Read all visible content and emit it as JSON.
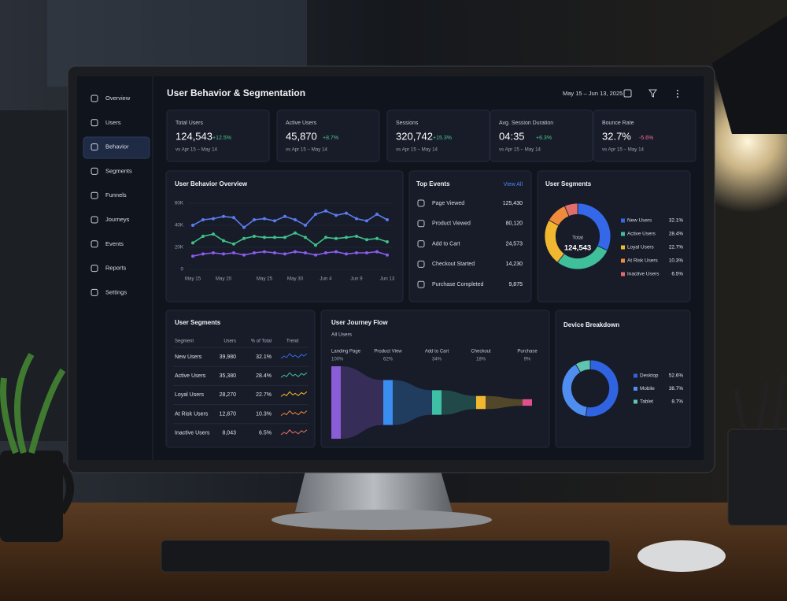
{
  "sidebar": {
    "items": [
      "Overview",
      "Users",
      "Behavior",
      "Segments",
      "Funnels",
      "Journeys",
      "Events",
      "Reports",
      "Settings"
    ]
  },
  "header": {
    "title": "User Behavior & Segmentation",
    "date_range": "May 15 – Jun 13, 2025"
  },
  "kpis": [
    {
      "label": "Total Users",
      "value": "124,543",
      "change": "+12.5%",
      "compare": "vs Apr 15 – May 14"
    },
    {
      "label": "Active Users",
      "value": "45,870",
      "change": "+8.7%",
      "compare": "vs Apr 15 – May 14"
    },
    {
      "label": "Sessions",
      "value": "320,742",
      "change": "+15.3%",
      "compare": "vs Apr 15 – May 14"
    },
    {
      "label": "Avg. Session Duration",
      "value": "04:35",
      "change": "+6.3%",
      "compare": "vs Apr 15 – May 14"
    },
    {
      "label": "Bounce Rate",
      "value": "32.7%",
      "change": "-5.6%",
      "compare": "vs Apr 15 – May 14"
    }
  ],
  "top_events": {
    "title": "Top Events",
    "link": "View All",
    "rows": [
      [
        "Page Viewed",
        "125,430"
      ],
      [
        "Product Viewed",
        "80,120"
      ],
      [
        "Add to Cart",
        "24,573"
      ],
      [
        "Checkout Started",
        "14,230"
      ],
      [
        "Purchase Completed",
        "9,875"
      ]
    ]
  },
  "segments_table": {
    "title": "User Segments",
    "columns": [
      "Segment",
      "Users",
      "% of Total",
      "Trend"
    ],
    "rows": [
      [
        "New Users",
        "39,980",
        "32.1%"
      ],
      [
        "Active Users",
        "35,380",
        "28.4%"
      ],
      [
        "Loyal Users",
        "28,270",
        "22.7%"
      ],
      [
        "At Risk Users",
        "12,870",
        "10.3%"
      ],
      [
        "Inactive Users",
        "8,043",
        "6.5%"
      ]
    ]
  },
  "chart_data": [
    {
      "type": "line",
      "title": "User Behavior Overview",
      "categories": [
        "May 15",
        null,
        null,
        "May 20",
        null,
        null,
        null,
        "May 25",
        null,
        null,
        "May 30",
        null,
        null,
        "Jun 4",
        null,
        null,
        "Jun 9",
        null,
        null,
        "Jun 13"
      ],
      "series": [
        {
          "color": "#5b7cf0",
          "values": [
            40000,
            45000,
            46000,
            48000,
            47000,
            38000,
            45000,
            46000,
            44000,
            48000,
            45000,
            40000,
            50000,
            53000,
            49000,
            51000,
            46000,
            44000,
            50000,
            45000
          ]
        },
        {
          "color": "#3ec28a",
          "values": [
            24000,
            30000,
            32000,
            26000,
            23000,
            28000,
            30000,
            29000,
            29000,
            29000,
            33000,
            29000,
            22000,
            29000,
            28000,
            29000,
            30000,
            27000,
            28000,
            25000
          ]
        },
        {
          "color": "#8a5cf0",
          "values": [
            12000,
            14000,
            15000,
            14000,
            15000,
            13000,
            15000,
            16000,
            15000,
            14000,
            16000,
            15000,
            13000,
            15000,
            16000,
            14000,
            15000,
            15000,
            16000,
            13000
          ]
        }
      ],
      "ylim": [
        0,
        60000
      ],
      "yticks": [
        0,
        {
          "value": 20000,
          "label": "20K"
        },
        {
          "value": 40000,
          "label": "40K"
        },
        {
          "value": 60000,
          "label": "60K"
        }
      ],
      "grid": true
    },
    {
      "type": "pie",
      "title": "User Segments",
      "donut": true,
      "center_label": "Total",
      "center_value": "124,543",
      "categories": [
        "New Users",
        "Active Users",
        "Loyal Users",
        "At Risk Users",
        "Inactive Users"
      ],
      "values": [
        32.1,
        28.4,
        22.7,
        10.3,
        6.5
      ],
      "value_labels": [
        "32.1%",
        "28.4%",
        "22.7%",
        "10.3%",
        "6.5%"
      ],
      "colors": [
        "#3568e8",
        "#3fbf9a",
        "#f2b731",
        "#f08a3c",
        "#e26d6d"
      ]
    },
    {
      "type": "funnel",
      "title": "User Journey Flow",
      "subtitle": "All Users",
      "categories": [
        "Landing Page",
        "Product View",
        "Add to Cart",
        "Checkout",
        "Purchase"
      ],
      "values": [
        100,
        62,
        34,
        18,
        9
      ],
      "value_labels": [
        "100%",
        "62%",
        "34%",
        "18%",
        "9%"
      ],
      "colors": [
        "#8a5cd6",
        "#3a8ef0",
        "#3fbfa6",
        "#f2b731",
        "#e0508f"
      ]
    },
    {
      "type": "pie",
      "title": "Device Breakdown",
      "donut": true,
      "categories": [
        "Desktop",
        "Mobile",
        "Tablet"
      ],
      "values": [
        52.6,
        38.7,
        8.7
      ],
      "value_labels": [
        "52.6%",
        "38.7%",
        "8.7%"
      ],
      "colors": [
        "#2f63e0",
        "#4f8ef0",
        "#5fc4b0"
      ]
    }
  ]
}
